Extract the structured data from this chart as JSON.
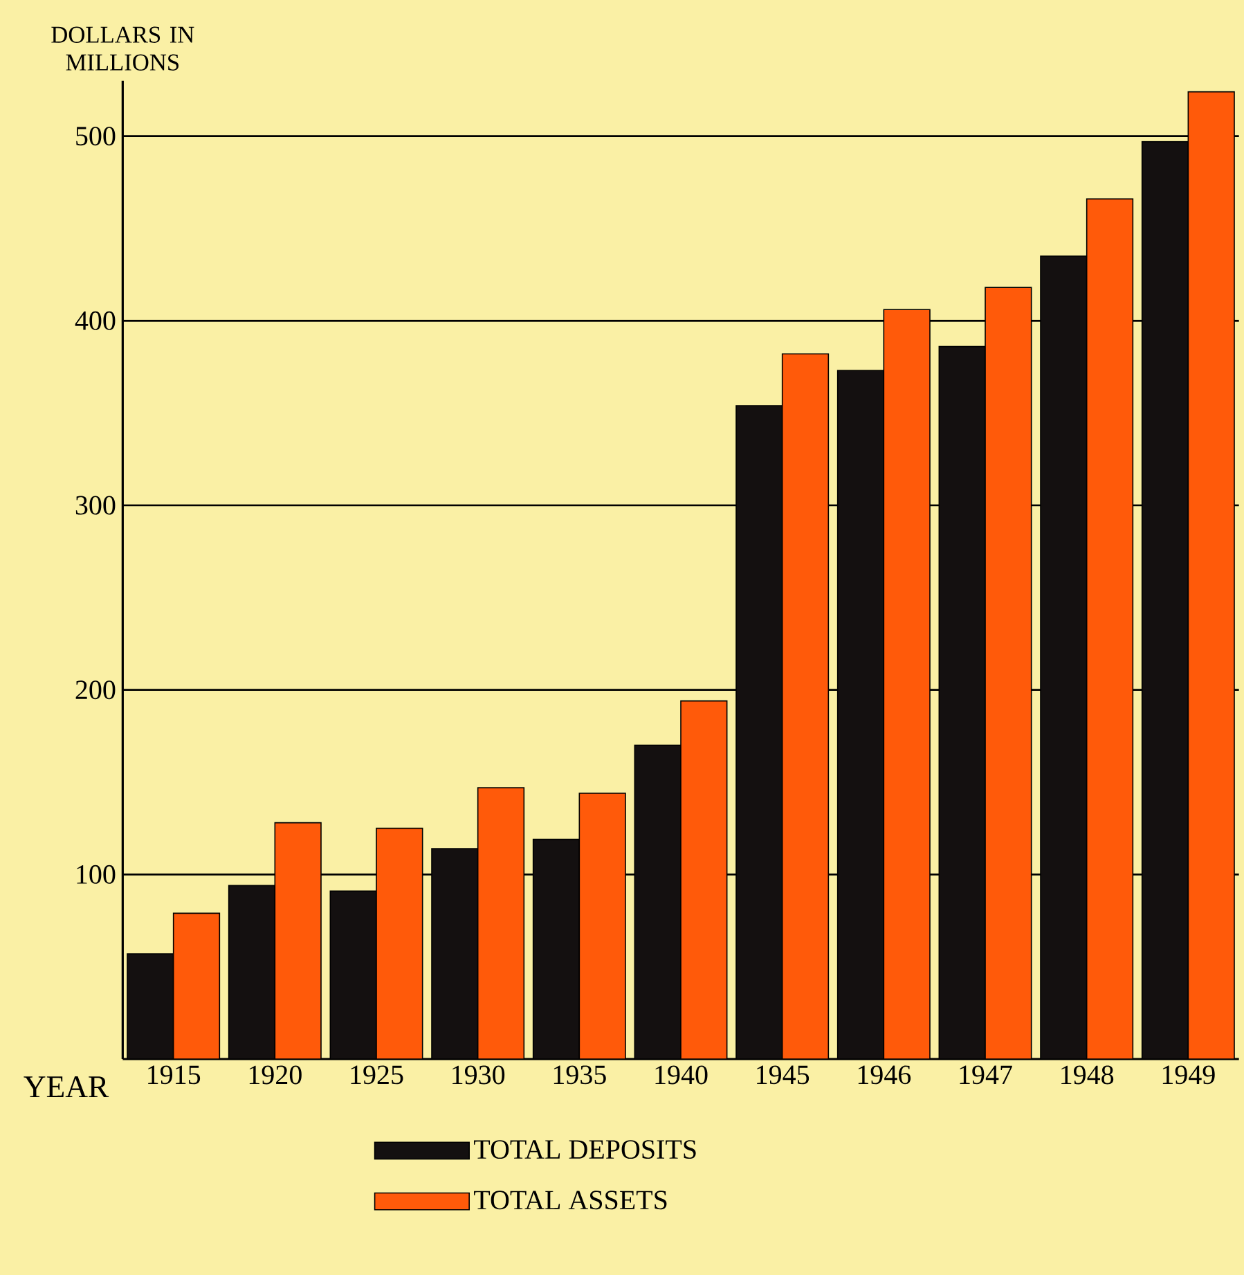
{
  "chart_data": {
    "type": "bar",
    "ylabel": "DOLLARS IN MILLIONS",
    "xlabel": "YEAR",
    "categories": [
      "1915",
      "1920",
      "1925",
      "1930",
      "1935",
      "1940",
      "1945",
      "1946",
      "1947",
      "1948",
      "1949"
    ],
    "series": [
      {
        "name": "TOTAL DEPOSITS",
        "color": "#141010",
        "values": [
          57,
          94,
          91,
          114,
          119,
          170,
          354,
          373,
          386,
          435,
          497
        ]
      },
      {
        "name": "TOTAL ASSETS",
        "color": "#ff5a0a",
        "values": [
          79,
          128,
          125,
          147,
          144,
          194,
          382,
          406,
          418,
          466,
          524
        ]
      }
    ],
    "ylim": [
      0,
      530
    ],
    "yticks": [
      100,
      200,
      300,
      400,
      500
    ],
    "grid": "y",
    "legend": "bottom"
  }
}
